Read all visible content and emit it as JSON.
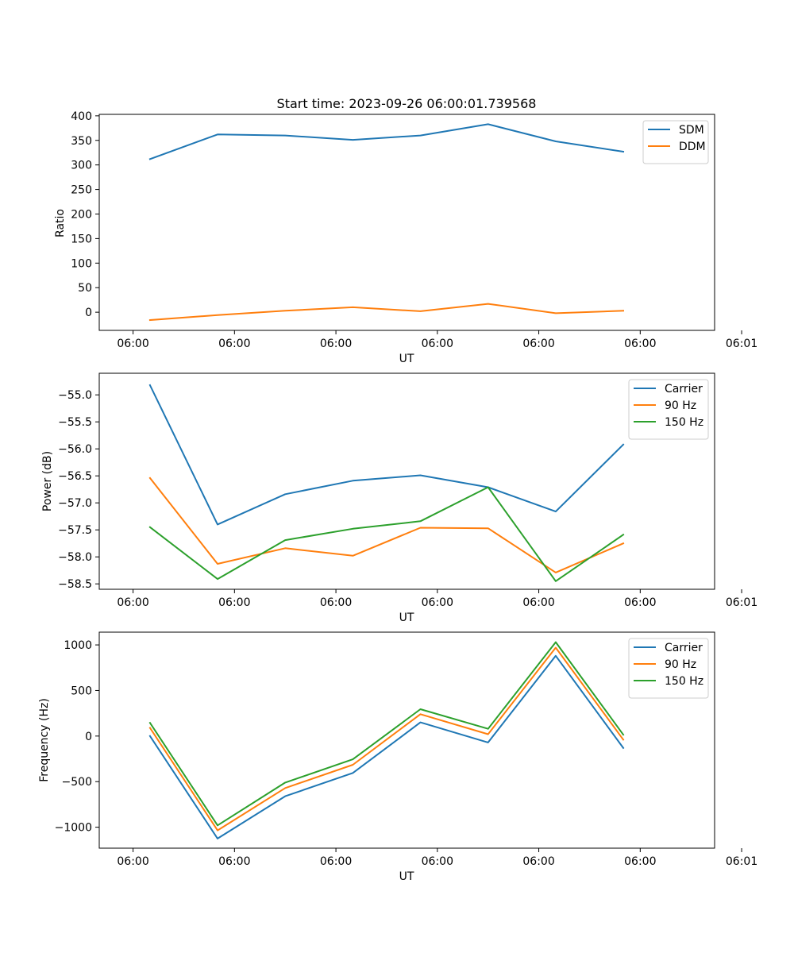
{
  "figure_title": "Start time: 2023-09-26 06:00:01.739568",
  "colors": {
    "blue": "#1f77b4",
    "orange": "#ff7f0e",
    "green": "#2ca02c"
  },
  "chart_data": [
    {
      "type": "line",
      "title": "Start time: 2023-09-26 06:00:01.739568",
      "xlabel": "UT",
      "ylabel": "Ratio",
      "xlim": [
        -1,
        17.2
      ],
      "ylim": [
        -37,
        403
      ],
      "x": [
        0.5,
        2.5,
        4.5,
        6.5,
        8.5,
        10.5,
        12.5,
        14.5
      ],
      "xticks": [
        0,
        3,
        6,
        9,
        12,
        15,
        18
      ],
      "xtick_labels": [
        "06:00",
        "06:00",
        "06:00",
        "06:00",
        "06:00",
        "06:00",
        "06:01"
      ],
      "yticks": [
        0,
        50,
        100,
        150,
        200,
        250,
        300,
        350,
        400
      ],
      "ytick_labels": [
        "0",
        "50",
        "100",
        "150",
        "200",
        "250",
        "300",
        "350",
        "400"
      ],
      "legend": "top-right",
      "series": [
        {
          "name": "SDM",
          "color": "#1f77b4",
          "values": [
            312,
            362,
            360,
            351,
            360,
            383,
            348,
            327
          ]
        },
        {
          "name": "DDM",
          "color": "#ff7f0e",
          "values": [
            -16,
            -6,
            3,
            10,
            2,
            17,
            -2,
            3
          ]
        }
      ]
    },
    {
      "type": "line",
      "xlabel": "UT",
      "ylabel": "Power (dB)",
      "xlim": [
        -1,
        17.2
      ],
      "ylim": [
        -58.6,
        -54.6
      ],
      "x": [
        0.5,
        2.5,
        4.5,
        6.5,
        8.5,
        10.5,
        12.5,
        14.5
      ],
      "xticks": [
        0,
        3,
        6,
        9,
        12,
        15,
        18
      ],
      "xtick_labels": [
        "06:00",
        "06:00",
        "06:00",
        "06:00",
        "06:00",
        "06:00",
        "06:01"
      ],
      "yticks": [
        -58.5,
        -58.0,
        -57.5,
        -57.0,
        -56.5,
        -56.0,
        -55.5,
        -55.0
      ],
      "ytick_labels": [
        "−58.5",
        "−58.0",
        "−57.5",
        "−57.0",
        "−56.5",
        "−56.0",
        "−55.5",
        "−55.0"
      ],
      "legend": "top-right",
      "series": [
        {
          "name": "Carrier",
          "color": "#1f77b4",
          "values": [
            -54.82,
            -57.4,
            -56.84,
            -56.59,
            -56.49,
            -56.71,
            -57.16,
            -55.92
          ]
        },
        {
          "name": "90 Hz",
          "color": "#ff7f0e",
          "values": [
            -56.54,
            -58.13,
            -57.84,
            -57.98,
            -57.46,
            -57.47,
            -58.29,
            -57.75
          ]
        },
        {
          "name": "150 Hz",
          "color": "#2ca02c",
          "values": [
            -57.45,
            -58.41,
            -57.69,
            -57.48,
            -57.34,
            -56.71,
            -58.45,
            -57.59
          ]
        }
      ]
    },
    {
      "type": "line",
      "xlabel": "UT",
      "ylabel": "Frequency (Hz)",
      "xlim": [
        -1,
        17.2
      ],
      "ylim": [
        -1230,
        1140
      ],
      "x": [
        0.5,
        2.5,
        4.5,
        6.5,
        8.5,
        10.5,
        12.5,
        14.5
      ],
      "xticks": [
        0,
        3,
        6,
        9,
        12,
        15,
        18
      ],
      "xtick_labels": [
        "06:00",
        "06:00",
        "06:00",
        "06:00",
        "06:00",
        "06:00",
        "06:01"
      ],
      "yticks": [
        -1000,
        -500,
        0,
        500,
        1000
      ],
      "ytick_labels": [
        "−1000",
        "−500",
        "0",
        "500",
        "1000"
      ],
      "legend": "top-right",
      "series": [
        {
          "name": "Carrier",
          "color": "#1f77b4",
          "values": [
            0,
            -1125,
            -660,
            -405,
            150,
            -70,
            880,
            -130
          ]
        },
        {
          "name": "90 Hz",
          "color": "#ff7f0e",
          "values": [
            90,
            -1035,
            -570,
            -315,
            240,
            20,
            970,
            -40
          ]
        },
        {
          "name": "150 Hz",
          "color": "#2ca02c",
          "values": [
            145,
            -980,
            -510,
            -255,
            295,
            80,
            1030,
            15
          ]
        }
      ]
    }
  ]
}
